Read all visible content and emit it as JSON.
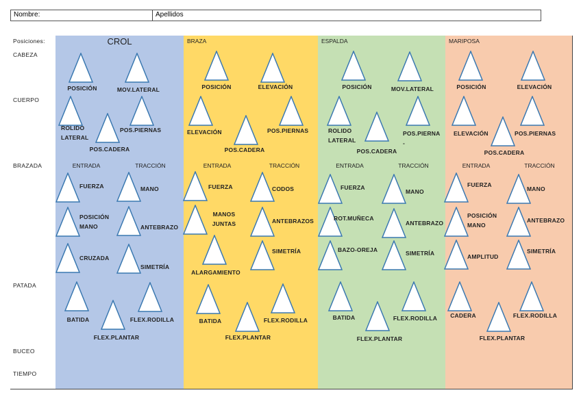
{
  "form": {
    "nombre_label": "Nombre:",
    "apellidos_label": "Apellidos"
  },
  "table": {
    "corner": "Posiciones:",
    "rows": [
      "CABEZA",
      "CUERPO",
      "BRAZADA",
      "PATADA",
      "BUCEO",
      "TIEMPO"
    ],
    "sub_headers": {
      "entrada": "ENTRADA",
      "traccion": "TRACCIÓN"
    },
    "strokes": [
      {
        "name": "CROL",
        "color": "#b4c7e7",
        "cabeza": [
          "POSICIÓN",
          "MOV.LATERAL"
        ],
        "cuerpo": [
          "ROLIDO\nLATERAL",
          "POS.CADERA",
          "POS.PIERNAS"
        ],
        "entrada": [
          "FUERZA",
          "POSICIÓN\nMANO",
          "CRUZADA"
        ],
        "traccion": [
          "MANO",
          "ANTEBRAZO",
          "SIMETRÍA"
        ],
        "patada": [
          "BATIDA",
          "FLEX.PLANTAR",
          "FLEX.RODILLA"
        ]
      },
      {
        "name": "BRAZA",
        "color": "#ffd966",
        "cabeza": [
          "POSICIÓN",
          "ELEVACIÓN"
        ],
        "cuerpo": [
          "ELEVACIÓN",
          "POS.CADERA",
          "POS.PIERNAS"
        ],
        "entrada": [
          "FUERZA",
          "MANOS\nJUNTAS",
          "ALARGAMIENTO"
        ],
        "traccion": [
          "CODOS",
          "ANTEBRAZOS",
          "SIMETRÍA"
        ],
        "patada": [
          "BATIDA",
          "FLEX.PLANTAR",
          "FLEX.RODILLA"
        ]
      },
      {
        "name": "ESPALDA",
        "color": "#c5e0b4",
        "cabeza": [
          "POSICIÓN",
          "MOV.LATERAL"
        ],
        "cuerpo": [
          "ROLIDO\nLATERAL",
          "POS.CADERA",
          "POS.PIERNA\n-"
        ],
        "entrada": [
          "FUERZA",
          "ROT.MUÑECA",
          "BAZO-OREJA"
        ],
        "traccion": [
          "MANO",
          "ANTEBRAZO",
          "SIMETRÍA"
        ],
        "patada": [
          "BATIDA",
          "FLEX.PLANTAR",
          "FLEX.RODILLA"
        ]
      },
      {
        "name": "MARIPOSA",
        "color": "#f8cbad",
        "cabeza": [
          "POSICIÓN",
          "ELEVACIÓN"
        ],
        "cuerpo": [
          "ELEVACIÓN",
          "POS.CADERA",
          "POS.PIERNAS"
        ],
        "entrada": [
          "FUERZA",
          "POSICIÓN\nMANO",
          "AMPLITUD"
        ],
        "traccion": [
          "MANO",
          "ANTEBRAZO",
          "SIMETRÍA"
        ],
        "patada": [
          "CADERA",
          "FLEX.PLANTAR",
          "FLEX.RODILLA"
        ]
      }
    ]
  }
}
